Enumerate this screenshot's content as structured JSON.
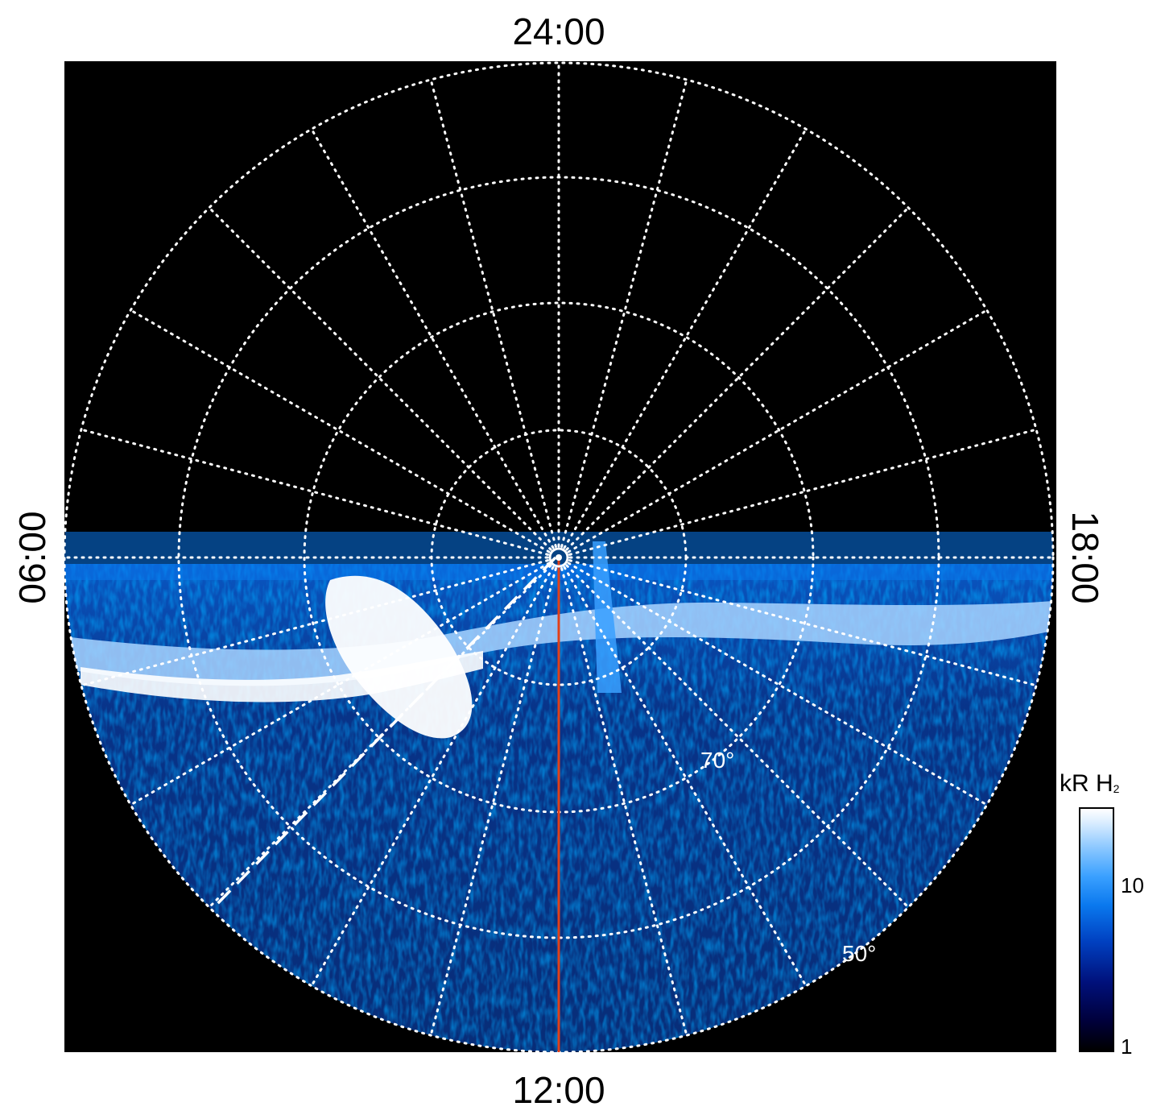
{
  "local_time_labels": {
    "top": "24:00",
    "bottom": "12:00",
    "left": "06:00",
    "right": "18:00"
  },
  "latitude_labels": {
    "lat70": "70°",
    "lat50": "50°"
  },
  "colorbar": {
    "title": "kR H",
    "title_subscript": "2",
    "ticks": [
      "10",
      "1"
    ],
    "scale": "log"
  },
  "colors": {
    "background": "#000000",
    "grid": "#ffffff",
    "emission_low": "#00107a",
    "emission_mid": "#0a78ee",
    "emission_high": "#ffffff",
    "meridian_line": "#e0401a"
  }
}
